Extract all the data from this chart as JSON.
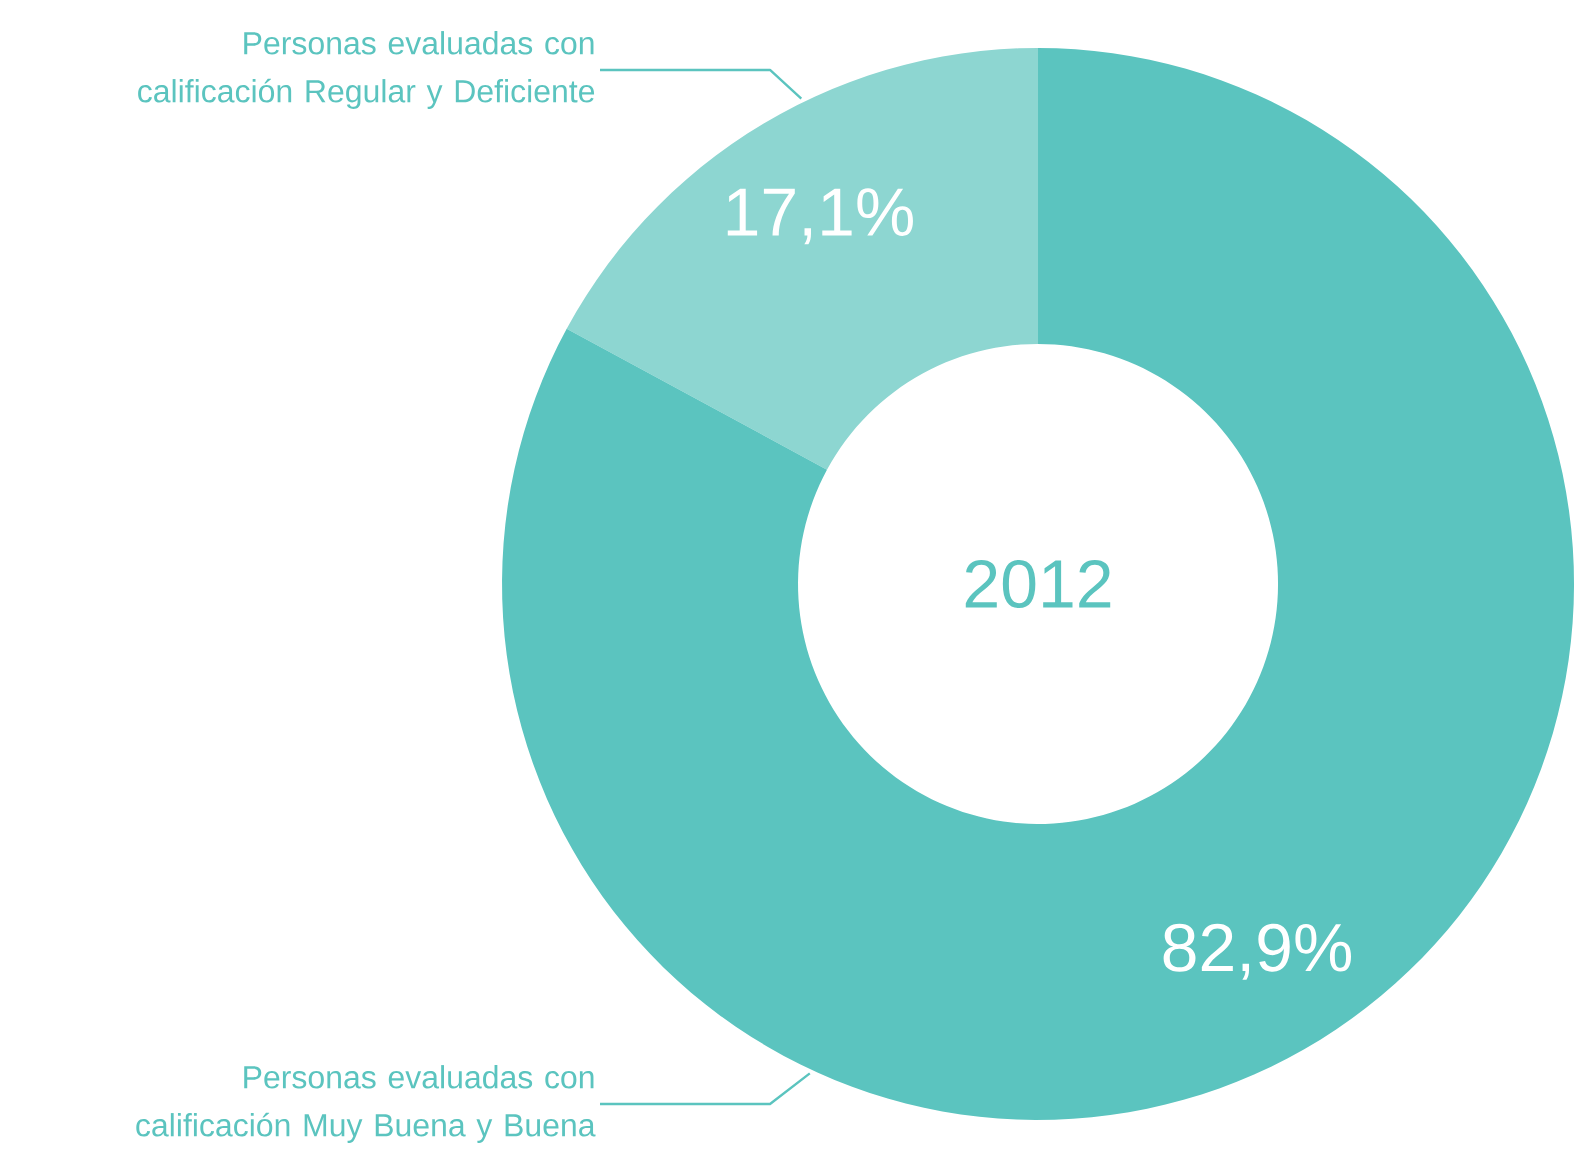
{
  "chart_data": {
    "type": "donut",
    "title": "2012",
    "categories": [
      "Personas evaluadas con calificación Regular y Deficiente",
      "Personas evaluadas con calificación Muy Buena y Buena"
    ],
    "values": [
      17.1,
      82.9
    ],
    "value_labels": [
      "17,1%",
      "82,9%"
    ],
    "colors": [
      "#8dd6d1",
      "#5bc4bf"
    ]
  }
}
